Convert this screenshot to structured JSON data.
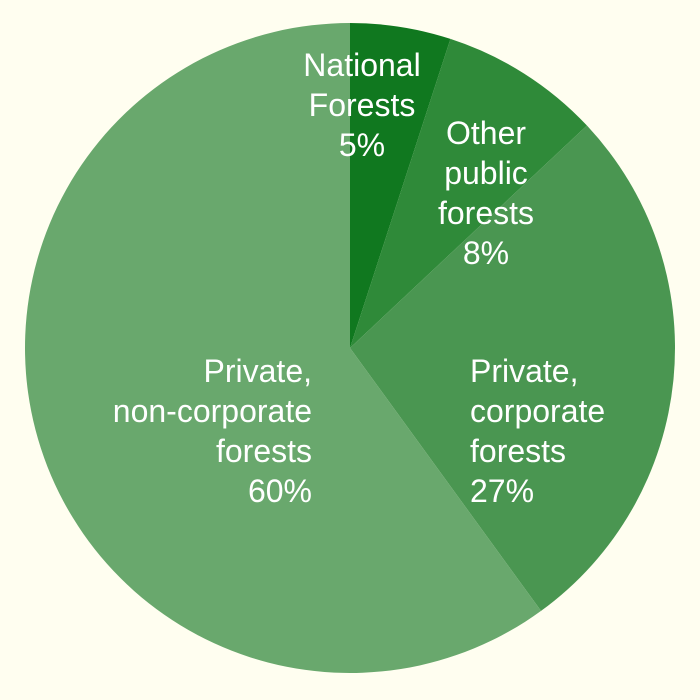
{
  "colors": {
    "background": "#fffef0",
    "label_text": "#ffffff"
  },
  "chart_data": {
    "type": "pie",
    "start_angle_deg": 0,
    "direction": "clockwise",
    "slices": [
      {
        "label_lines": [
          "National",
          "Forests",
          "5%"
        ],
        "value": 5,
        "color": "#10781f"
      },
      {
        "label_lines": [
          "Other",
          "public",
          "forests",
          "8%"
        ],
        "value": 8,
        "color": "#2f8a39"
      },
      {
        "label_lines": [
          "Private,",
          "corporate",
          "forests",
          "27%"
        ],
        "value": 27,
        "color": "#4a9651"
      },
      {
        "label_lines": [
          "Private,",
          "non-corporate",
          "forests",
          "60%"
        ],
        "value": 60,
        "color": "#69a86d"
      }
    ]
  }
}
